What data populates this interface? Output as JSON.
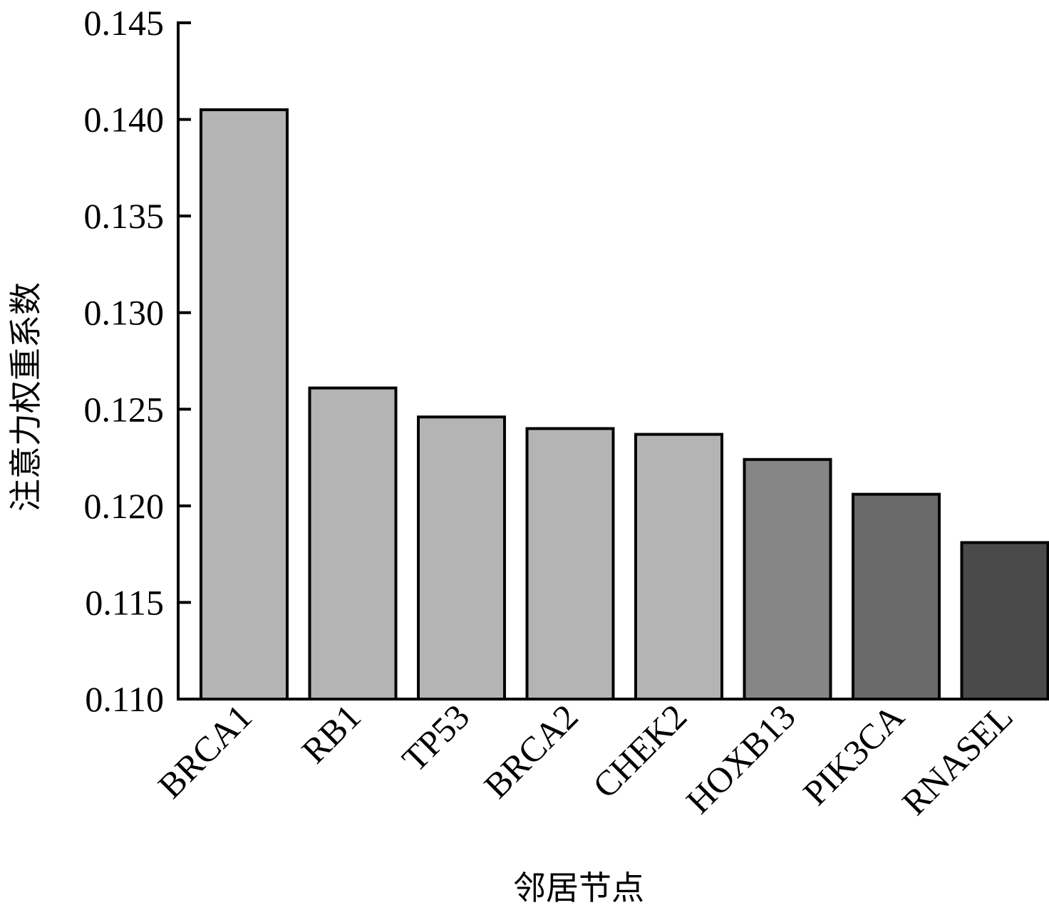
{
  "chart_data": {
    "type": "bar",
    "title": "",
    "xlabel": "邻居节点",
    "ylabel": "注意力权重系数",
    "categories": [
      "BRCA1",
      "RB1",
      "TP53",
      "BRCA2",
      "CHEK2",
      "HOXB13",
      "PIK3CA",
      "RNASEL"
    ],
    "values": [
      0.1405,
      0.1261,
      0.1246,
      0.124,
      0.1237,
      0.1224,
      0.1206,
      0.1181
    ],
    "bar_colors": [
      "#b4b4b4",
      "#b4b4b4",
      "#b4b4b4",
      "#b4b4b4",
      "#b4b4b4",
      "#868686",
      "#6a6a6a",
      "#4a4a4a"
    ],
    "ylim": [
      0.11,
      0.145
    ],
    "yticks": [
      "0.110",
      "0.115",
      "0.120",
      "0.125",
      "0.130",
      "0.135",
      "0.140",
      "0.145"
    ],
    "grid": false,
    "legend": "none"
  }
}
